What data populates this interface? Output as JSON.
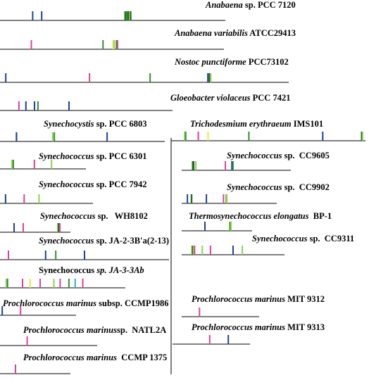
{
  "colors": {
    "axis": "#000000",
    "blue": "#1f3f9a",
    "magenta": "#e0409a",
    "green": "#2f8f2f",
    "lightgreen": "#8fd14f",
    "yellow": "#e8e840",
    "teal": "#2fb8a8",
    "darkgreen": "#1e5e1e"
  },
  "genomes": [
    {
      "id": "anabaena-7120",
      "italic": "Anabaena",
      "rest": " sp. PCC 7120",
      "marks": [
        [
          "blue",
          0.145
        ],
        [
          "blue",
          0.185
        ],
        [
          "darkgreen",
          0.555
        ],
        [
          "green",
          0.56
        ],
        [
          "green",
          0.565
        ],
        [
          "darkgreen",
          0.57
        ],
        [
          "lightgreen",
          0.575
        ],
        [
          "darkgreen",
          0.58
        ]
      ]
    },
    {
      "id": "anabaena-variabilis",
      "italic": "Anabaena variabilis",
      "rest": " ATCC29413",
      "marks": [
        [
          "magenta",
          0.14
        ],
        [
          "green",
          0.46
        ],
        [
          "yellow",
          0.505
        ],
        [
          "lightgreen",
          0.51
        ],
        [
          "green",
          0.52
        ],
        [
          "magenta",
          0.525
        ]
      ]
    },
    {
      "id": "nostoc-punctiforme",
      "italic": "Nostoc punctiforme",
      "rest": " PCC73102",
      "marks": [
        [
          "blue",
          0.02
        ],
        [
          "magenta",
          0.31
        ],
        [
          "green",
          0.52
        ],
        [
          "blue",
          0.72
        ],
        [
          "darkgreen",
          0.725
        ],
        [
          "lightgreen",
          0.73
        ]
      ]
    },
    {
      "id": "gloeobacter-violaceus",
      "italic": "Gloeobacter violaceus",
      "rest": " PCC 7421",
      "marks": [
        [
          "magenta",
          0.11
        ],
        [
          "blue",
          0.15
        ],
        [
          "green",
          0.22
        ],
        [
          "blue",
          0.2
        ],
        [
          "blue",
          0.4
        ]
      ]
    },
    {
      "id": "synechocystis-6803",
      "italic": "Synechocystis",
      "rest": " sp. PCC 6803",
      "marks": [
        [
          "blue",
          0.1
        ],
        [
          "blue",
          0.1
        ],
        [
          "lightgreen",
          0.32
        ],
        [
          "green",
          0.33
        ],
        [
          "blue",
          0.65
        ]
      ]
    },
    {
      "id": "synechococcus-6301",
      "italic": "Synechococcus",
      "rest": " sp. PCC 6301",
      "marks": [
        [
          "lightgreen",
          0.14
        ],
        [
          "green",
          0.155
        ],
        [
          "magenta",
          0.4
        ],
        [
          "lightgreen",
          0.6
        ]
      ]
    },
    {
      "id": "synechococcus-7942",
      "italic": "Synechococcus",
      "rest": " sp. PCC 7942",
      "marks": [
        [
          "blue",
          0.06
        ],
        [
          "magenta",
          0.26
        ],
        [
          "lightgreen",
          0.42
        ]
      ]
    },
    {
      "id": "synechococcus-wh8102",
      "italic": "Synechococcus",
      "rest": " sp.   WH8102",
      "marks": [
        [
          "blue",
          0.2
        ],
        [
          "magenta",
          0.33
        ],
        [
          "lightgreen",
          0.82
        ],
        [
          "green",
          0.83
        ],
        [
          "darkgreen",
          0.84
        ],
        [
          "magenta",
          0.85
        ]
      ]
    },
    {
      "id": "synechococcus-ja2",
      "italic": "Synechococcus",
      "rest": " sp. JA-2-3B'a(2-13)",
      "marks": [
        [
          "magenta",
          0.05
        ],
        [
          "blue",
          0.27
        ],
        [
          "green",
          0.33
        ],
        [
          "blue",
          0.5
        ]
      ]
    },
    {
      "id": "synechococcus-ja3",
      "plain": "Synechococcus",
      "italic": " sp. JA-3-3Ab",
      "marks": [
        [
          "lightgreen",
          0.05
        ],
        [
          "green",
          0.06
        ],
        [
          "magenta",
          0.18
        ],
        [
          "yellow",
          0.24
        ],
        [
          "magenta",
          0.32
        ],
        [
          "lightgreen",
          0.43
        ],
        [
          "magenta",
          0.48
        ],
        [
          "green",
          0.55
        ],
        [
          "teal",
          0.6
        ],
        [
          "magenta",
          0.66
        ]
      ]
    },
    {
      "id": "prochlorococcus-ccmp1986",
      "italic": "Prochlorococcus marinus",
      "rest": " subsp. CCMP1986",
      "marks": [
        [
          "blue",
          0.03
        ],
        [
          "magenta",
          0.27
        ]
      ]
    },
    {
      "id": "prochlorococcus-natl2a",
      "italic": "Prochlorococcus marinus",
      "rest": "sp.  NATL2A",
      "marks": [
        [
          "magenta",
          0.28
        ]
      ]
    },
    {
      "id": "prochlorococcus-ccmp1375",
      "italic": "Prochlorococcus marinus",
      "rest": "  CCMP 1375",
      "marks": [
        [
          "magenta",
          0.22
        ]
      ]
    },
    {
      "id": "trichodesmium-ims101",
      "italic": "Trichodesmium erythraeum",
      "rest": " IMS101",
      "marks": [
        [
          "lightgreen",
          0.07
        ],
        [
          "green",
          0.075
        ],
        [
          "magenta",
          0.14
        ],
        [
          "yellow",
          0.19
        ],
        [
          "green",
          0.4
        ],
        [
          "blue",
          0.78
        ],
        [
          "darkgreen",
          0.98
        ],
        [
          "lightgreen",
          0.985
        ]
      ]
    },
    {
      "id": "synechococcus-cc9605",
      "italic": "Synechococcus",
      "rest": " sp.  CC9605",
      "marks": [
        [
          "darkgreen",
          0.1
        ],
        [
          "green",
          0.105
        ],
        [
          "darkgreen",
          0.11
        ],
        [
          "lightgreen",
          0.13
        ],
        [
          "magenta",
          0.4
        ],
        [
          "blue",
          0.46
        ],
        [
          "green",
          0.47
        ]
      ]
    },
    {
      "id": "synechococcus-cc9902",
      "italic": "Synechococcus",
      "rest": " sp.  CC9902",
      "marks": [
        [
          "blue",
          0.06
        ],
        [
          "lightgreen",
          0.1
        ],
        [
          "darkgreen",
          0.105
        ],
        [
          "blue",
          0.26
        ],
        [
          "magenta",
          0.44
        ],
        [
          "green",
          0.47
        ],
        [
          "lightgreen",
          0.475
        ]
      ]
    },
    {
      "id": "thermosynechococcus-bp1",
      "italic": "Thermosynechococcus elongatus",
      "rest": "  BP-1",
      "marks": [
        [
          "blue",
          0.33
        ],
        [
          "lightgreen",
          0.68
        ],
        [
          "green",
          0.69
        ],
        [
          "lightgreen",
          0.7
        ]
      ]
    },
    {
      "id": "synechococcus-cc9311",
      "italic": "Synechococcus",
      "rest": " sp.  CC9311",
      "marks": [
        [
          "lightgreen",
          0.1
        ],
        [
          "green",
          0.105
        ],
        [
          "darkgreen",
          0.11
        ],
        [
          "lightgreen",
          0.115
        ],
        [
          "magenta",
          0.125
        ],
        [
          "lightgreen",
          0.2
        ],
        [
          "magenta",
          0.28
        ],
        [
          "blue",
          0.5
        ],
        [
          "lightgreen",
          0.59
        ]
      ]
    },
    {
      "id": "prochlorococcus-mit9312",
      "italic": "Prochlorococcus marinus",
      "rest": " MIT 9312",
      "marks": [
        [
          "magenta",
          0.23
        ]
      ]
    },
    {
      "id": "prochlorococcus-mit9313",
      "italic": "Prochlorococcus marinus",
      "rest": " MIT 9313",
      "marks": [
        [
          "magenta",
          0.48
        ],
        [
          "blue",
          0.72
        ]
      ]
    }
  ]
}
